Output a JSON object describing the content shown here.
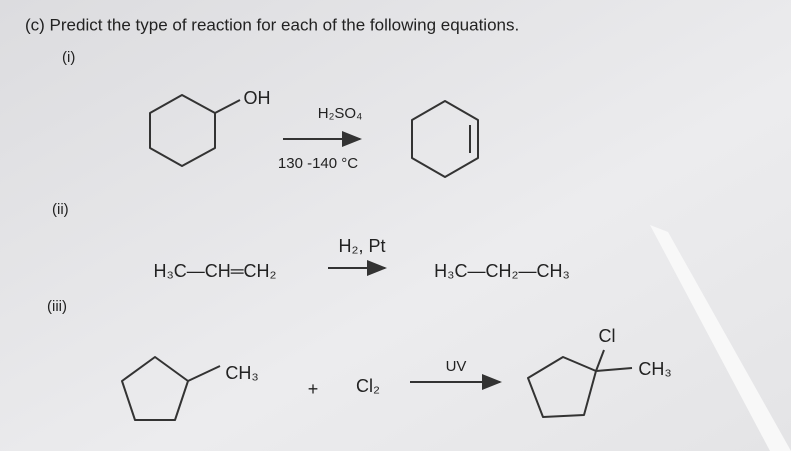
{
  "header": {
    "title": "(c) Predict the type of reaction for each of the following equations."
  },
  "parts": [
    {
      "label": "(i)",
      "reactant_group": "OH",
      "reagent": "H₂SO₄",
      "condition": "130 -140 °C"
    },
    {
      "label": "(ii)",
      "reactant": "H₃C—CH═CH₂",
      "reagent": "H₂, Pt",
      "product": "H₃C—CH₂—CH₃"
    },
    {
      "label": "(iii)",
      "reactant_group": "CH₃",
      "plus": "+",
      "reagent": "Cl₂",
      "condition": "UV",
      "product_groups": [
        "Cl",
        "CH₃"
      ]
    }
  ]
}
